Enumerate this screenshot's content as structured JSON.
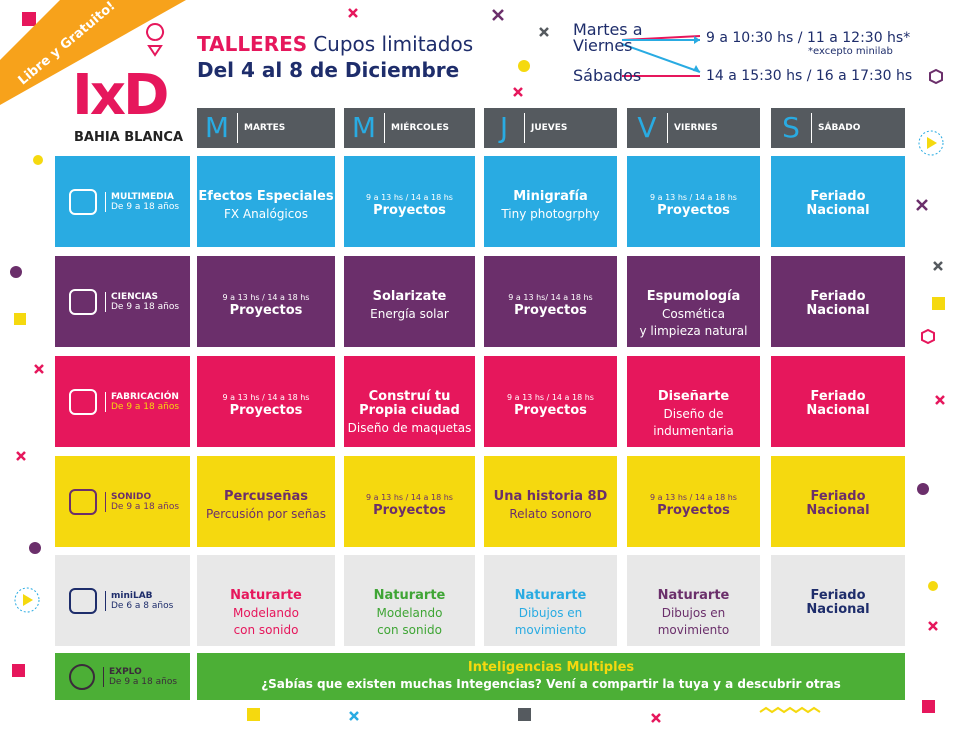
{
  "ribbon": "Libre y Gratuito!",
  "logo": {
    "mark": "IxD",
    "city": "BAHIA BLANCA"
  },
  "header": {
    "title": "TALLERES",
    "subtitle": "Cupos limitados",
    "dates": "Del 4 al 8 de Diciembre"
  },
  "schedule": {
    "weekdays": [
      "Martes a",
      "Viernes"
    ],
    "weekday_hours": "9 a 10:30 hs / 11 a 12:30 hs*",
    "note": "*excepto minilab",
    "saturday": "Sábados",
    "saturday_hours": "14 a 15:30 hs / 16 a 17:30 hs"
  },
  "days": [
    {
      "letter": "M",
      "name": "MARTES"
    },
    {
      "letter": "M",
      "name": "MIÉRCOLES"
    },
    {
      "letter": "J",
      "name": "JUEVES"
    },
    {
      "letter": "V",
      "name": "VIERNES"
    },
    {
      "letter": "S",
      "name": "SÁBADO"
    }
  ],
  "rows": [
    {
      "name": "MULTIMEDIA",
      "ages": "De 9 a 18 años",
      "cells": [
        {
          "title": [
            "Efectos Especiales"
          ],
          "text": [
            "FX Analógicos"
          ]
        },
        {
          "time": "9 a 13 hs  / 14 a 18 hs",
          "title": [
            "Proyectos"
          ]
        },
        {
          "title": [
            "Minigrafía"
          ],
          "text": [
            "Tiny photogrphy"
          ]
        },
        {
          "time": "9 a 13 hs  / 14 a 18 hs",
          "title": [
            "Proyectos"
          ]
        },
        {
          "title": [
            "Feriado",
            "Nacional"
          ]
        }
      ]
    },
    {
      "name": "CIENCIAS",
      "ages": "De 9 a 18 años",
      "cells": [
        {
          "time": "9 a 13 hs  / 14 a 18 hs",
          "title": [
            "Proyectos"
          ]
        },
        {
          "title": [
            "Solarizate"
          ],
          "text": [
            "Energía solar"
          ]
        },
        {
          "time": "9 a 13 hs/ 14 a 18 hs",
          "title": [
            "Proyectos"
          ]
        },
        {
          "title": [
            "Espumología"
          ],
          "text": [
            "Cosmética",
            "y limpieza natural"
          ]
        },
        {
          "title": [
            "Feriado",
            "Nacional"
          ]
        }
      ]
    },
    {
      "name": "FABRICACIÓN",
      "ages": "De 9 a 18 años",
      "cells": [
        {
          "time": "9 a 13 hs  / 14 a 18 hs",
          "title": [
            "Proyectos"
          ]
        },
        {
          "title": [
            "Construí tu",
            "Propia ciudad"
          ],
          "text": [
            "Diseño de maquetas"
          ]
        },
        {
          "time": "9 a 13 hs  / 14 a 18 hs",
          "title": [
            "Proyectos"
          ]
        },
        {
          "title": [
            "Diseñarte"
          ],
          "text": [
            "Diseño de",
            "indumentaria"
          ]
        },
        {
          "title": [
            "Feriado",
            "Nacional"
          ]
        }
      ]
    },
    {
      "name": "SONIDO",
      "ages": "De 9 a 18 años",
      "cells": [
        {
          "title": [
            "Percuseñas"
          ],
          "text": [
            "Percusión por señas"
          ]
        },
        {
          "time": "9 a 13 hs  / 14 a 18 hs",
          "title": [
            "Proyectos"
          ]
        },
        {
          "title": [
            "Una historia 8D"
          ],
          "text": [
            "Relato sonoro"
          ]
        },
        {
          "time": "9 a 13 hs  / 14 a 18 hs",
          "title": [
            "Proyectos"
          ]
        },
        {
          "title": [
            "Feriado",
            "Nacional"
          ]
        }
      ]
    },
    {
      "name": "miniLAB",
      "ages": "De 6 a 8 años",
      "cells": [
        {
          "title": [
            "Naturarte"
          ],
          "text": [
            "Modelando",
            "con sonido"
          ]
        },
        {
          "title": [
            "Naturarte"
          ],
          "text": [
            "Modelando",
            "con sonido"
          ]
        },
        {
          "title": [
            "Naturarte"
          ],
          "text": [
            "Dibujos en",
            "movimiento"
          ]
        },
        {
          "title": [
            "Naturarte"
          ],
          "text": [
            "Dibujos en",
            "movimiento"
          ]
        },
        {
          "title": [
            "Feriado",
            "Nacional"
          ]
        }
      ]
    }
  ],
  "explo": {
    "name": "EXPLO",
    "ages": "De 9 a 18 años",
    "title": "Inteligencias Multiples",
    "text": "¿Sabías que existen muchas Integencias? Vení a compartir la tuya y a descubrir otras"
  }
}
